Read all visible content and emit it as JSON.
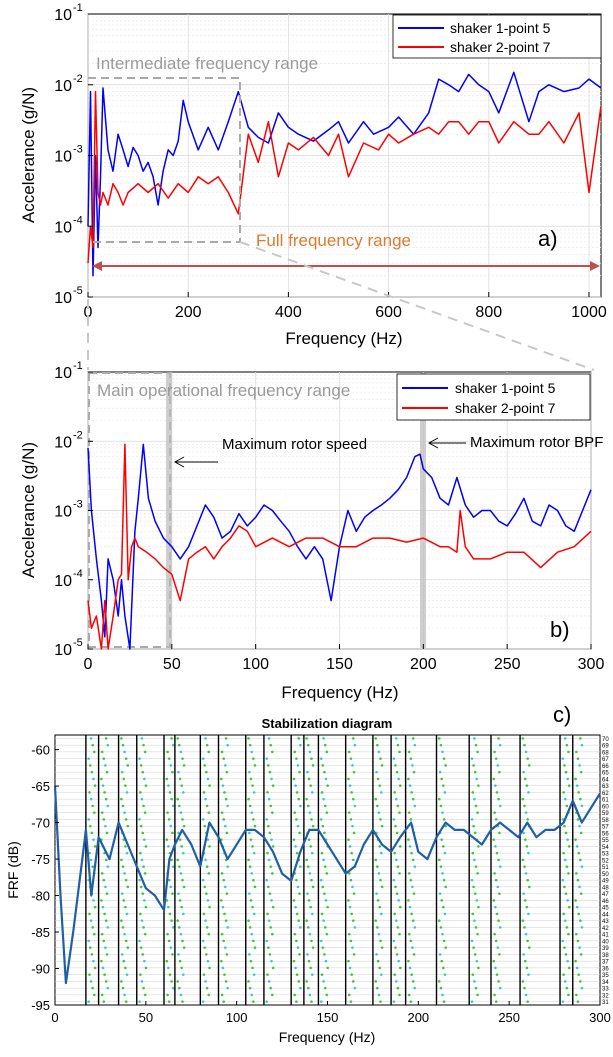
{
  "chart_data": [
    {
      "panel": "a)",
      "type": "line",
      "xlabel": "Frequency (Hz)",
      "ylabel": "Accelerance (g/N)",
      "xlim": [
        0,
        1024
      ],
      "ylim": [
        1e-05,
        0.1
      ],
      "yscale": "log",
      "xticks": [
        0,
        200,
        400,
        600,
        800,
        1000
      ],
      "yticks": [
        1e-05,
        0.0001,
        0.001,
        0.01,
        0.1
      ],
      "yticklabels": [
        "10",
        "10",
        "10",
        "10",
        "10"
      ],
      "ytickexps": [
        "-5",
        "-4",
        "-3",
        "-2",
        "-1"
      ],
      "grid": true,
      "legend": "top-right",
      "annotations": [
        {
          "text": "Intermediate frequency range",
          "color": "#9a9a9a"
        },
        {
          "text": "Full frequency range",
          "color": "#e07a2e"
        }
      ],
      "series": [
        {
          "name": "shaker 1-point 5",
          "color": "#0000ff",
          "x": [
            0,
            5,
            10,
            15,
            20,
            25,
            30,
            40,
            50,
            60,
            70,
            80,
            90,
            100,
            110,
            120,
            130,
            140,
            150,
            160,
            170,
            180,
            190,
            200,
            220,
            240,
            260,
            280,
            300,
            320,
            340,
            360,
            380,
            400,
            420,
            450,
            480,
            500,
            520,
            550,
            570,
            600,
            620,
            650,
            680,
            700,
            720,
            740,
            760,
            780,
            800,
            820,
            850,
            880,
            900,
            920,
            950,
            980,
            1000,
            1024
          ],
          "y": [
            0.0001,
            0.008,
            2e-05,
            0.001,
            5e-05,
            0.0005,
            0.009,
            0.0012,
            0.0006,
            0.002,
            0.0012,
            0.0007,
            0.0013,
            0.001,
            0.0006,
            0.0008,
            0.0005,
            0.0002,
            0.0006,
            0.0012,
            0.001,
            0.0016,
            0.006,
            0.003,
            0.0012,
            0.0025,
            0.0012,
            0.003,
            0.008,
            0.0025,
            0.0018,
            0.0015,
            0.004,
            0.0025,
            0.002,
            0.0016,
            0.0023,
            0.003,
            0.0015,
            0.003,
            0.002,
            0.0025,
            0.0035,
            0.002,
            0.004,
            0.012,
            0.01,
            0.008,
            0.014,
            0.01,
            0.008,
            0.004,
            0.015,
            0.003,
            0.008,
            0.01,
            0.008,
            0.009,
            0.012,
            0.009
          ]
        },
        {
          "name": "shaker 2-point 7",
          "color": "#ff0000",
          "x": [
            0,
            5,
            10,
            15,
            20,
            25,
            30,
            40,
            50,
            60,
            70,
            80,
            100,
            120,
            140,
            160,
            180,
            200,
            220,
            240,
            260,
            280,
            300,
            320,
            340,
            360,
            380,
            400,
            420,
            450,
            480,
            500,
            520,
            550,
            580,
            600,
            620,
            650,
            680,
            700,
            720,
            740,
            760,
            780,
            800,
            820,
            850,
            880,
            900,
            920,
            950,
            980,
            1000,
            1024
          ],
          "y": [
            3e-05,
            0.0001,
            5e-05,
            0.008,
            0.0003,
            0.0002,
            0.0003,
            0.0002,
            0.0004,
            0.0003,
            0.0002,
            0.0003,
            0.0004,
            0.0003,
            0.0004,
            0.00025,
            0.0004,
            0.0003,
            0.0005,
            0.0004,
            0.0005,
            0.0003,
            0.00015,
            0.002,
            0.0008,
            0.003,
            0.0005,
            0.0015,
            0.0012,
            0.0018,
            0.001,
            0.002,
            0.0005,
            0.0015,
            0.0012,
            0.002,
            0.0015,
            0.002,
            0.0025,
            0.002,
            0.003,
            0.003,
            0.002,
            0.003,
            0.003,
            0.0015,
            0.003,
            0.002,
            0.002,
            0.003,
            0.0015,
            0.004,
            0.0003,
            0.005
          ]
        }
      ]
    },
    {
      "panel": "b)",
      "type": "line",
      "xlabel": "Frequency (Hz)",
      "ylabel": "Accelerance (g/N)",
      "xlim": [
        0,
        300
      ],
      "ylim": [
        1e-05,
        0.1
      ],
      "yscale": "log",
      "xticks": [
        0,
        50,
        100,
        150,
        200,
        250,
        300
      ],
      "yticks": [
        1e-05,
        0.0001,
        0.001,
        0.01,
        0.1
      ],
      "yticklabels": [
        "10",
        "10",
        "10",
        "10",
        "10"
      ],
      "ytickexps": [
        "-5",
        "-4",
        "-3",
        "-2",
        "-1"
      ],
      "grid": true,
      "legend": "top-right",
      "annotations": [
        {
          "text": "Main operational frequency range",
          "color": "#9a9a9a"
        },
        {
          "text": "Maximum rotor speed",
          "color": "#000000"
        },
        {
          "text": "Maximum rotor BPF",
          "color": "#000000"
        }
      ],
      "series": [
        {
          "name": "shaker 1-point 5",
          "color": "#0000ff",
          "x": [
            0,
            2,
            5,
            8,
            10,
            12,
            15,
            18,
            20,
            22,
            25,
            28,
            30,
            33,
            36,
            40,
            45,
            50,
            55,
            60,
            65,
            70,
            75,
            80,
            85,
            90,
            95,
            100,
            105,
            110,
            115,
            120,
            125,
            130,
            135,
            140,
            145,
            150,
            155,
            160,
            165,
            170,
            175,
            180,
            185,
            190,
            195,
            198,
            200,
            205,
            210,
            215,
            220,
            225,
            230,
            235,
            240,
            245,
            250,
            255,
            260,
            265,
            270,
            275,
            280,
            285,
            290,
            295,
            300
          ],
          "y": [
            0.008,
            0.001,
            0.0002,
            5e-05,
            1.5e-05,
            0.0002,
            0.0001,
            3e-05,
            0.0001,
            3e-05,
            1e-05,
            0.0005,
            0.0015,
            0.009,
            0.0015,
            0.0007,
            0.0004,
            0.0003,
            0.0002,
            0.0003,
            0.0006,
            0.0012,
            0.0008,
            0.0004,
            0.0005,
            0.0009,
            0.0006,
            0.0008,
            0.0012,
            0.001,
            0.0007,
            0.0005,
            0.0003,
            0.0002,
            0.0003,
            0.0002,
            5e-05,
            0.0003,
            0.001,
            0.0005,
            0.0008,
            0.001,
            0.0012,
            0.0015,
            0.002,
            0.003,
            0.006,
            0.0065,
            0.004,
            0.003,
            0.0015,
            0.0012,
            0.003,
            0.0012,
            0.0008,
            0.001,
            0.001,
            0.0007,
            0.0006,
            0.0009,
            0.0015,
            0.0007,
            0.0006,
            0.0012,
            0.001,
            0.0006,
            0.0005,
            0.001,
            0.002
          ]
        },
        {
          "name": "shaker 2-point 7",
          "color": "#ff0000",
          "x": [
            0,
            2,
            5,
            8,
            10,
            12,
            15,
            18,
            20,
            22,
            24,
            26,
            28,
            30,
            35,
            40,
            45,
            50,
            55,
            60,
            65,
            70,
            75,
            80,
            85,
            90,
            95,
            100,
            110,
            120,
            130,
            140,
            150,
            160,
            170,
            180,
            190,
            200,
            210,
            215,
            220,
            222,
            225,
            230,
            240,
            250,
            260,
            270,
            280,
            290,
            300
          ],
          "y": [
            5e-05,
            2e-05,
            3e-05,
            1e-05,
            5e-05,
            1e-05,
            3e-05,
            0.0001,
            0.00012,
            0.009,
            0.0001,
            0.0003,
            0.0004,
            0.0003,
            0.00025,
            0.0002,
            0.00015,
            0.00012,
            5e-05,
            0.0002,
            0.00025,
            0.0003,
            0.0002,
            0.0003,
            0.0004,
            0.0006,
            0.0005,
            0.0003,
            0.0004,
            0.0003,
            0.0004,
            0.0004,
            0.0003,
            0.0003,
            0.0004,
            0.0004,
            0.00035,
            0.0004,
            0.0003,
            0.0003,
            0.00025,
            0.001,
            0.0003,
            0.0002,
            0.0002,
            0.00025,
            0.00025,
            0.00015,
            0.00025,
            0.0003,
            0.0005
          ]
        }
      ]
    },
    {
      "panel": "c)",
      "type": "line",
      "title": "Stabilization diagram",
      "xlabel": "Frequency (Hz)",
      "ylabel": "FRF (dB)",
      "xlim": [
        0,
        300
      ],
      "ylim": [
        -95,
        -58
      ],
      "xticks": [
        0,
        50,
        100,
        150,
        200,
        250,
        300
      ],
      "yticks": [
        -95,
        -90,
        -85,
        -80,
        -75,
        -70,
        -65,
        -60
      ],
      "right_ticks": [
        "31",
        "32",
        "33",
        "34",
        "35",
        "36",
        "37",
        "38",
        "39",
        "40",
        "41",
        "42",
        "43",
        "44",
        "45",
        "46",
        "47",
        "48",
        "49",
        "50",
        "51",
        "52",
        "53",
        "54",
        "55",
        "56",
        "57",
        "58",
        "59",
        "60",
        "61",
        "62",
        "63",
        "64",
        "65",
        "66",
        "67",
        "68",
        "69",
        "70"
      ],
      "pole_lines_hz": [
        17,
        24,
        35,
        45,
        60,
        66,
        80,
        90,
        105,
        115,
        130,
        137,
        145,
        160,
        175,
        185,
        193,
        210,
        228,
        240,
        256,
        278,
        285
      ],
      "series": [
        {
          "name": "",
          "color": "#1f5fa8",
          "x": [
            0,
            3,
            6,
            10,
            15,
            17,
            20,
            24,
            30,
            35,
            40,
            45,
            50,
            55,
            60,
            63,
            66,
            70,
            75,
            80,
            85,
            90,
            95,
            100,
            105,
            110,
            115,
            120,
            125,
            130,
            135,
            140,
            145,
            150,
            155,
            160,
            165,
            170,
            175,
            180,
            185,
            190,
            193,
            196,
            200,
            205,
            210,
            215,
            220,
            225,
            230,
            235,
            240,
            245,
            250,
            255,
            260,
            265,
            270,
            275,
            280,
            285,
            290,
            295,
            300
          ],
          "y": [
            -65,
            -80,
            -92,
            -85,
            -75,
            -71,
            -80,
            -72,
            -75,
            -70,
            -73,
            -76,
            -79,
            -80,
            -82,
            -75,
            -73,
            -71,
            -73,
            -76,
            -70,
            -72,
            -75,
            -73,
            -71,
            -71,
            -72,
            -74,
            -77,
            -78,
            -74,
            -71,
            -71,
            -73,
            -75,
            -77,
            -76,
            -73,
            -71,
            -73,
            -74,
            -72,
            -71,
            -70,
            -74,
            -75,
            -72,
            -70,
            -71,
            -71,
            -72,
            -73,
            -71,
            -70,
            -71,
            -72,
            -70,
            -72,
            -71,
            -71,
            -70,
            -67,
            -70,
            -68,
            -66
          ]
        }
      ]
    }
  ]
}
